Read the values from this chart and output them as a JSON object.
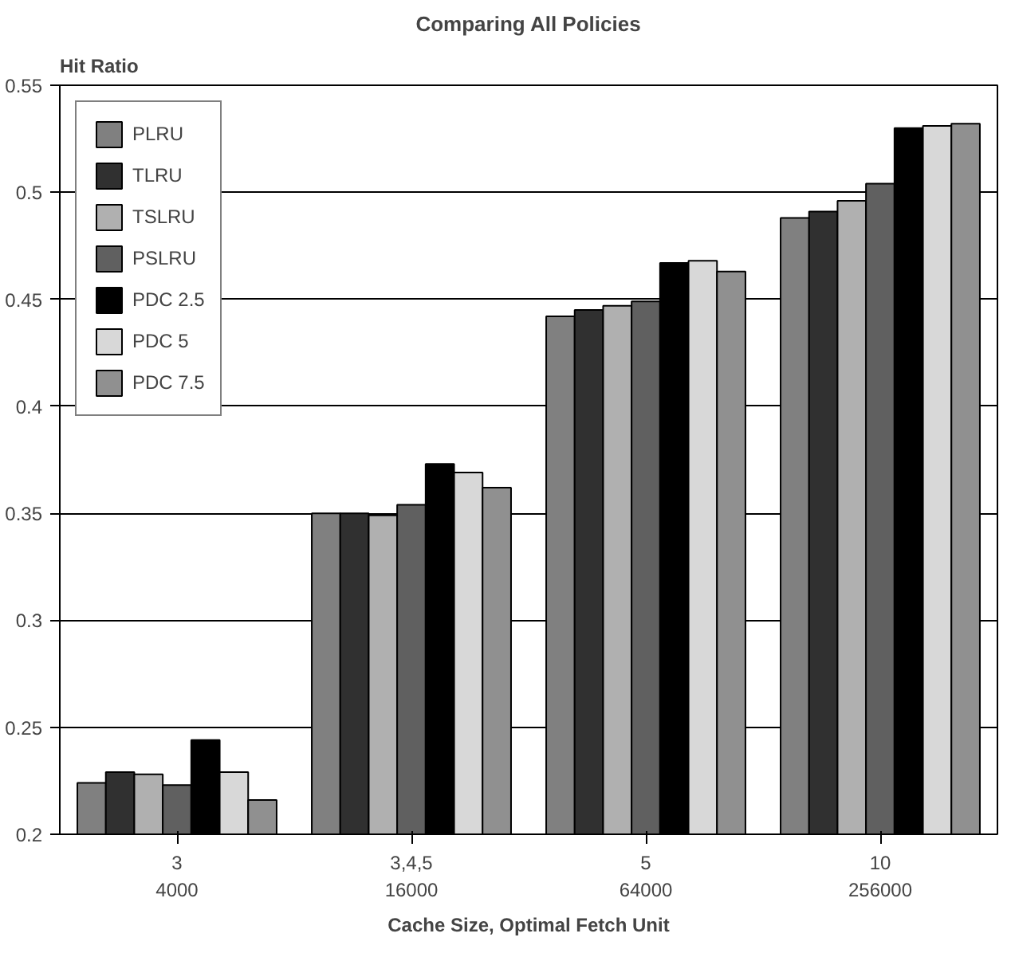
{
  "chart_data": {
    "type": "bar",
    "title": "Comparing All Policies",
    "ylabel": "Hit Ratio",
    "xlabel": "Cache Size, Optimal Fetch Unit",
    "categories": [
      "3\n4000",
      "3,4,5\n16000",
      "5\n64000",
      "10\n256000"
    ],
    "series": [
      {
        "name": "PLRU",
        "color": "#808080",
        "values": [
          0.224,
          0.35,
          0.442,
          0.488
        ]
      },
      {
        "name": "TLRU",
        "color": "#303030",
        "values": [
          0.229,
          0.35,
          0.445,
          0.491
        ]
      },
      {
        "name": "TSLRU",
        "color": "#b0b0b0",
        "values": [
          0.228,
          0.349,
          0.447,
          0.496
        ]
      },
      {
        "name": "PSLRU",
        "color": "#606060",
        "values": [
          0.223,
          0.354,
          0.449,
          0.504
        ]
      },
      {
        "name": "PDC 2.5",
        "color": "#000000",
        "values": [
          0.244,
          0.373,
          0.467,
          0.53
        ]
      },
      {
        "name": "PDC 5",
        "color": "#d8d8d8",
        "values": [
          0.229,
          0.369,
          0.468,
          0.531
        ]
      },
      {
        "name": "PDC 7.5",
        "color": "#909090",
        "values": [
          0.216,
          0.362,
          0.463,
          0.532
        ]
      }
    ],
    "ylim": [
      0.2,
      0.55
    ],
    "yticks": [
      0.2,
      0.25,
      0.3,
      0.35,
      0.4,
      0.45,
      0.5,
      0.55
    ],
    "grid": "y",
    "legend": "top left"
  }
}
